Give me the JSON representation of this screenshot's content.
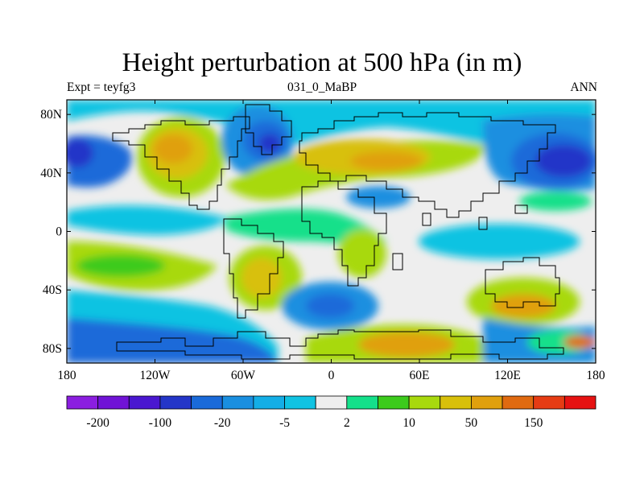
{
  "figure": {
    "title": "Height perturbation at 500 hPa (in m)",
    "left_label": "Expt = teyfg3",
    "center_label": "031_0_MaBP",
    "right_label": "ANN"
  },
  "map": {
    "lon_range": [
      -180,
      180
    ],
    "lat_range": [
      -90,
      90
    ],
    "x_ticks": [
      {
        "value": -180,
        "label": "180"
      },
      {
        "value": -120,
        "label": "120W"
      },
      {
        "value": -60,
        "label": "60W"
      },
      {
        "value": 0,
        "label": "0"
      },
      {
        "value": 60,
        "label": "60E"
      },
      {
        "value": 120,
        "label": "120E"
      },
      {
        "value": 180,
        "label": "180"
      }
    ],
    "y_ticks": [
      {
        "value": 80,
        "label": "80N"
      },
      {
        "value": 40,
        "label": "40N"
      },
      {
        "value": 0,
        "label": "0"
      },
      {
        "value": -40,
        "label": "40S"
      },
      {
        "value": -80,
        "label": "80S"
      }
    ]
  },
  "colorbar": {
    "colors": [
      "#8b1ee0",
      "#7013d6",
      "#4a17d0",
      "#2436c8",
      "#1a6ad9",
      "#1a8fe0",
      "#14aee6",
      "#10c3e2",
      "#eeeeee",
      "#14e08a",
      "#3ccb1c",
      "#a8d90e",
      "#d8c00a",
      "#e0a00e",
      "#e06a10",
      "#e63c14",
      "#e61212"
    ],
    "labels": [
      "-200",
      "-100",
      "-20",
      "-5",
      "2",
      "10",
      "50",
      "150"
    ]
  },
  "chart_data": {
    "type": "heatmap",
    "title": "Height perturbation at 500 hPa (in m)",
    "variable": "500 hPa height perturbation",
    "units": "m",
    "x_ticks": [
      "180",
      "120W",
      "60W",
      "0",
      "60E",
      "120E",
      "180"
    ],
    "y_ticks": [
      "80N",
      "40N",
      "0",
      "40S",
      "80S"
    ],
    "colorbar_labels": [
      "-200",
      "-100",
      "-20",
      "-5",
      "2",
      "10",
      "50",
      "150"
    ],
    "features": [
      {
        "lon": -100,
        "lat": 55,
        "value": 50,
        "desc": "positive anomaly over western North America"
      },
      {
        "lon": -45,
        "lat": 55,
        "value": -50,
        "desc": "negative anomaly over North Atlantic"
      },
      {
        "lon": 20,
        "lat": 45,
        "value": 30,
        "desc": "positive anomaly over Europe/Mediterranean"
      },
      {
        "lon": 145,
        "lat": 55,
        "value": -80,
        "desc": "negative anomaly over North Pacific/East Asia"
      },
      {
        "lon": -170,
        "lat": 50,
        "value": -30,
        "desc": "negative anomaly over western North Pacific edge"
      },
      {
        "lon": -45,
        "lat": -35,
        "value": 40,
        "desc": "positive anomaly over South America"
      },
      {
        "lon": 0,
        "lat": -50,
        "value": -60,
        "desc": "negative anomaly over South Atlantic"
      },
      {
        "lon": 50,
        "lat": -75,
        "value": 70,
        "desc": "positive anomaly over East Antarctica"
      },
      {
        "lon": 140,
        "lat": -50,
        "value": 60,
        "desc": "positive anomaly south of Australia"
      },
      {
        "lon": -120,
        "lat": -65,
        "value": -30,
        "desc": "negative anomaly over Southern Pacific"
      }
    ]
  }
}
